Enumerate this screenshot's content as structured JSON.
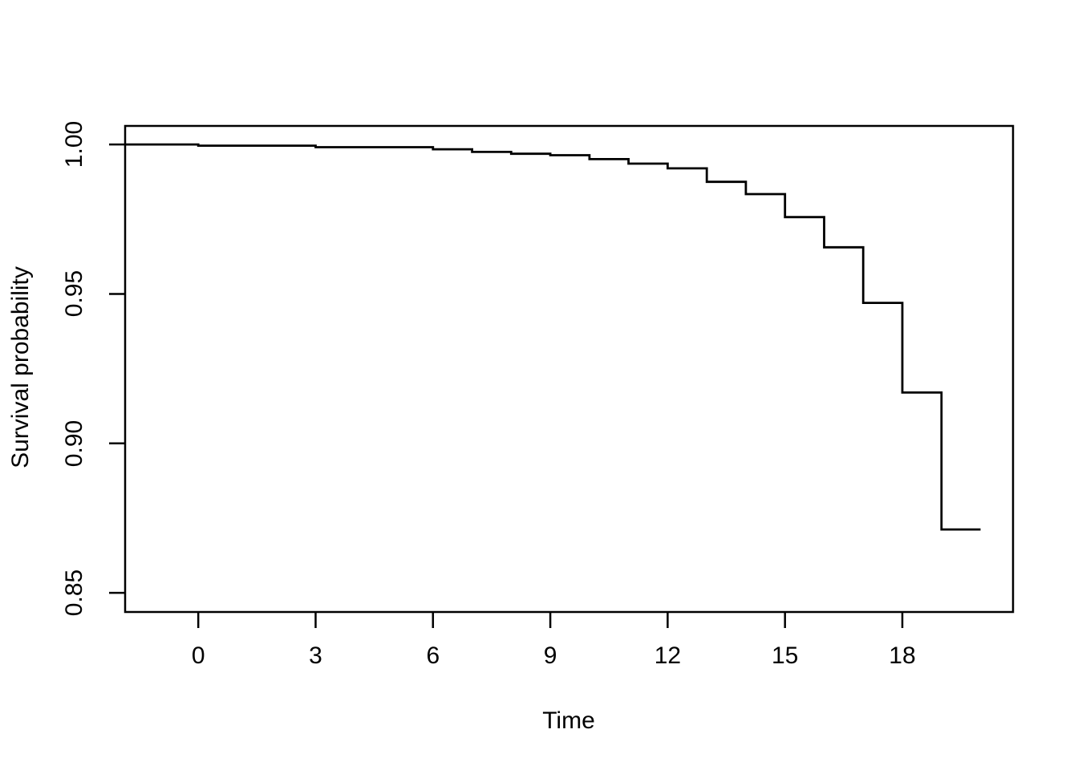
{
  "page": {
    "background_color": "#ffffff",
    "foreground_color": "#000000"
  },
  "chart_data": {
    "type": "line",
    "subtype": "step",
    "chart_kind": "kaplan-meier-survival-curve",
    "title": "",
    "xlabel": "Time",
    "ylabel": "Survival probability",
    "line_color": "#000000",
    "axis_color": "#000000",
    "grid": false,
    "legend_position": "none",
    "xlim": [
      -1.87,
      20.83
    ],
    "ylim": [
      0.8436,
      1.0062
    ],
    "x_ticks": [
      0,
      3,
      6,
      9,
      12,
      15,
      18
    ],
    "x_tick_labels": [
      "0",
      "3",
      "6",
      "9",
      "12",
      "15",
      "18"
    ],
    "y_ticks": [
      1.0,
      0.95,
      0.9,
      0.85
    ],
    "y_tick_labels": [
      "1.00",
      "0.95",
      "0.90",
      "0.85"
    ],
    "curve": {
      "start_survival": 1.0,
      "steps": [
        {
          "time": 0,
          "survival": 0.9996
        },
        {
          "time": 3,
          "survival": 0.9991
        },
        {
          "time": 6,
          "survival": 0.9984
        },
        {
          "time": 7,
          "survival": 0.9975
        },
        {
          "time": 8,
          "survival": 0.9969
        },
        {
          "time": 9,
          "survival": 0.9964
        },
        {
          "time": 10,
          "survival": 0.9951
        },
        {
          "time": 11,
          "survival": 0.9936
        },
        {
          "time": 12,
          "survival": 0.992
        },
        {
          "time": 13,
          "survival": 0.9875
        },
        {
          "time": 14,
          "survival": 0.9834
        },
        {
          "time": 15,
          "survival": 0.9757
        },
        {
          "time": 16,
          "survival": 0.9656
        },
        {
          "time": 17,
          "survival": 0.947
        },
        {
          "time": 18,
          "survival": 0.917
        },
        {
          "time": 19,
          "survival": 0.8712
        }
      ],
      "end_time": 20
    }
  }
}
